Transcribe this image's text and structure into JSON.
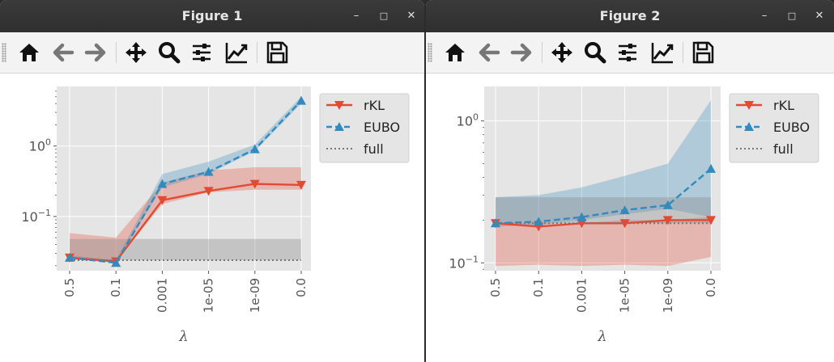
{
  "windows": [
    {
      "title": "Figure 1",
      "controls": {
        "minimize": "–",
        "maximize": "□",
        "close": "✕"
      }
    },
    {
      "title": "Figure 2",
      "controls": {
        "minimize": "–",
        "maximize": "□",
        "close": "✕"
      }
    }
  ],
  "toolbar": {
    "buttons": [
      {
        "name": "home",
        "icon": "home-icon"
      },
      {
        "name": "back",
        "icon": "arrow-left-icon"
      },
      {
        "name": "forward",
        "icon": "arrow-right-icon"
      },
      {
        "name": "pan",
        "icon": "move-icon"
      },
      {
        "name": "zoom",
        "icon": "magnifier-icon"
      },
      {
        "name": "configure-subplots",
        "icon": "sliders-icon"
      },
      {
        "name": "edit-axis",
        "icon": "line-chart-icon"
      },
      {
        "name": "save",
        "icon": "floppy-disk-icon"
      }
    ]
  },
  "chart_data": [
    {
      "type": "line",
      "title": "",
      "xlabel": "λ",
      "ylabel": "",
      "yscale": "log",
      "grid": true,
      "legend_placement": "outside-top-right",
      "categories": [
        "0.5",
        "0.1",
        "0.001",
        "1e-05",
        "1e-09",
        "0.0"
      ],
      "ylim": [
        0.017,
        7.0
      ],
      "yticks": [
        {
          "value": 0.1,
          "label": "10",
          "exp": "−1"
        },
        {
          "value": 1,
          "label": "10",
          "exp": "0"
        }
      ],
      "series": [
        {
          "name": "rKL",
          "color": "#E24A33",
          "marker": "triangle-down",
          "linestyle": "solid",
          "values": [
            0.026,
            0.023,
            0.17,
            0.23,
            0.29,
            0.28
          ],
          "band_low": [
            0.026,
            0.023,
            0.15,
            0.22,
            0.24,
            0.24
          ],
          "band_high": [
            0.058,
            0.05,
            0.3,
            0.45,
            0.5,
            0.5
          ]
        },
        {
          "name": "EUBO",
          "color": "#348ABD",
          "marker": "triangle-up",
          "linestyle": "dashed",
          "values": [
            0.026,
            0.022,
            0.29,
            0.43,
            0.9,
            4.4
          ],
          "band_low": [
            0.025,
            0.022,
            0.26,
            0.4,
            0.85,
            4.0
          ],
          "band_high": [
            0.028,
            0.024,
            0.4,
            0.6,
            1.05,
            5.0
          ]
        },
        {
          "name": "full",
          "color": "#777777",
          "marker": "none",
          "linestyle": "dotted",
          "values": [
            0.024,
            0.024,
            0.024,
            0.024,
            0.024,
            0.024
          ],
          "band_low": [
            0.024,
            0.024,
            0.024,
            0.024,
            0.024,
            0.024
          ],
          "band_high": [
            0.048,
            0.048,
            0.048,
            0.048,
            0.048,
            0.048
          ]
        }
      ]
    },
    {
      "type": "line",
      "title": "",
      "xlabel": "λ",
      "ylabel": "",
      "yscale": "log",
      "grid": true,
      "legend_placement": "outside-top-right",
      "categories": [
        "0.5",
        "0.1",
        "0.001",
        "1e-05",
        "1e-09",
        "0.0"
      ],
      "ylim": [
        0.088,
        1.75
      ],
      "yticks": [
        {
          "value": 0.1,
          "label": "10",
          "exp": "−1"
        },
        {
          "value": 1,
          "label": "10",
          "exp": "0"
        }
      ],
      "series": [
        {
          "name": "rKL",
          "color": "#E24A33",
          "marker": "triangle-down",
          "linestyle": "solid",
          "values": [
            0.19,
            0.18,
            0.19,
            0.19,
            0.2,
            0.2
          ],
          "band_low": [
            0.095,
            0.097,
            0.095,
            0.097,
            0.095,
            0.11
          ],
          "band_high": [
            0.19,
            0.19,
            0.19,
            0.2,
            0.2,
            0.21
          ]
        },
        {
          "name": "EUBO",
          "color": "#348ABD",
          "marker": "triangle-up",
          "linestyle": "dashed",
          "values": [
            0.19,
            0.195,
            0.21,
            0.235,
            0.255,
            0.46
          ],
          "band_low": [
            0.18,
            0.185,
            0.2,
            0.22,
            0.24,
            0.21
          ],
          "band_high": [
            0.29,
            0.3,
            0.34,
            0.41,
            0.5,
            1.4
          ]
        },
        {
          "name": "full",
          "color": "#777777",
          "marker": "none",
          "linestyle": "dotted",
          "values": [
            0.19,
            0.19,
            0.19,
            0.19,
            0.19,
            0.19
          ],
          "band_low": [
            0.19,
            0.19,
            0.19,
            0.19,
            0.19,
            0.19
          ],
          "band_high": [
            0.29,
            0.29,
            0.29,
            0.29,
            0.29,
            0.29
          ]
        }
      ]
    }
  ]
}
